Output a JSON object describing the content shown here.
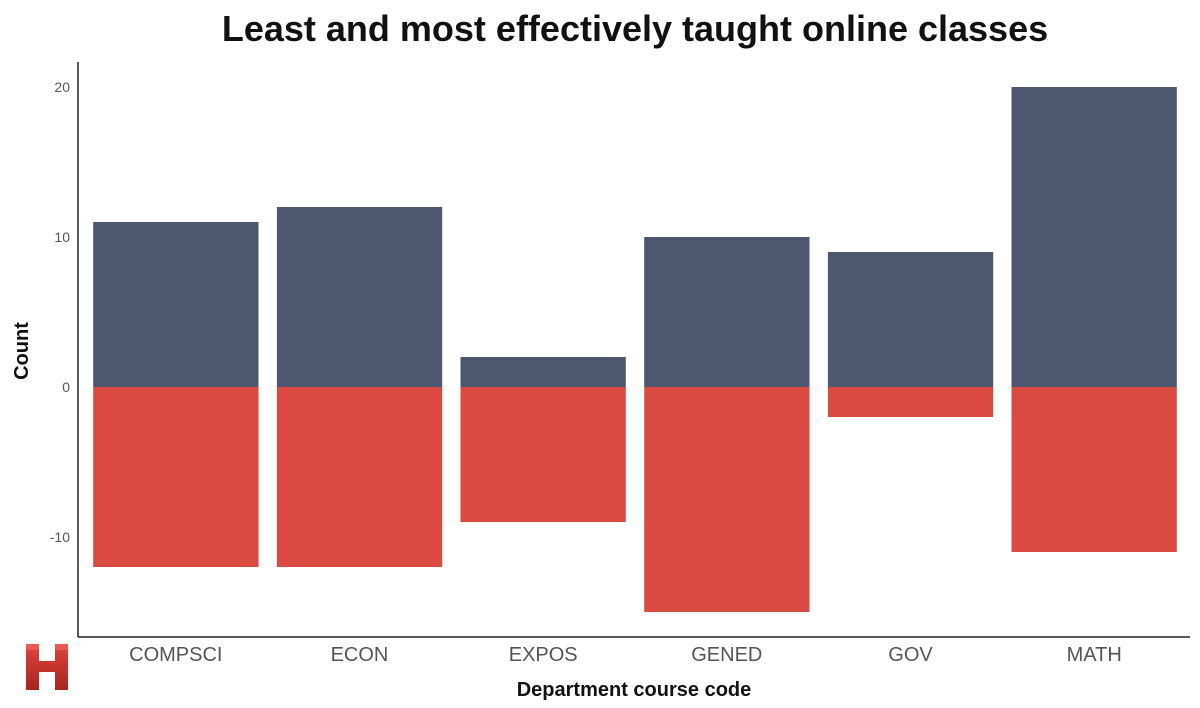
{
  "chart_data": {
    "type": "bar",
    "stacked": true,
    "title": "Least and most effectively taught online classes",
    "xlabel": "Department course code",
    "ylabel": "Count",
    "categories": [
      "COMPSCI",
      "ECON",
      "EXPOS",
      "GENED",
      "GOV",
      "MATH"
    ],
    "series": [
      {
        "values": [
          11,
          12,
          2,
          10,
          9,
          20
        ],
        "color": "#4d5770"
      },
      {
        "values": [
          -12,
          -12,
          -9,
          -15,
          -2,
          -11
        ],
        "color": "#db4a41"
      }
    ],
    "y_ticks": [
      "20",
      "10",
      "0",
      "-10"
    ],
    "y_tick_values": [
      20,
      10,
      0,
      -10
    ],
    "ylim": [
      -16.5,
      21.7
    ],
    "grid": false,
    "legend": "none"
  },
  "logo": {
    "icon": "harvard-h-logo",
    "color": "#c8302b"
  }
}
